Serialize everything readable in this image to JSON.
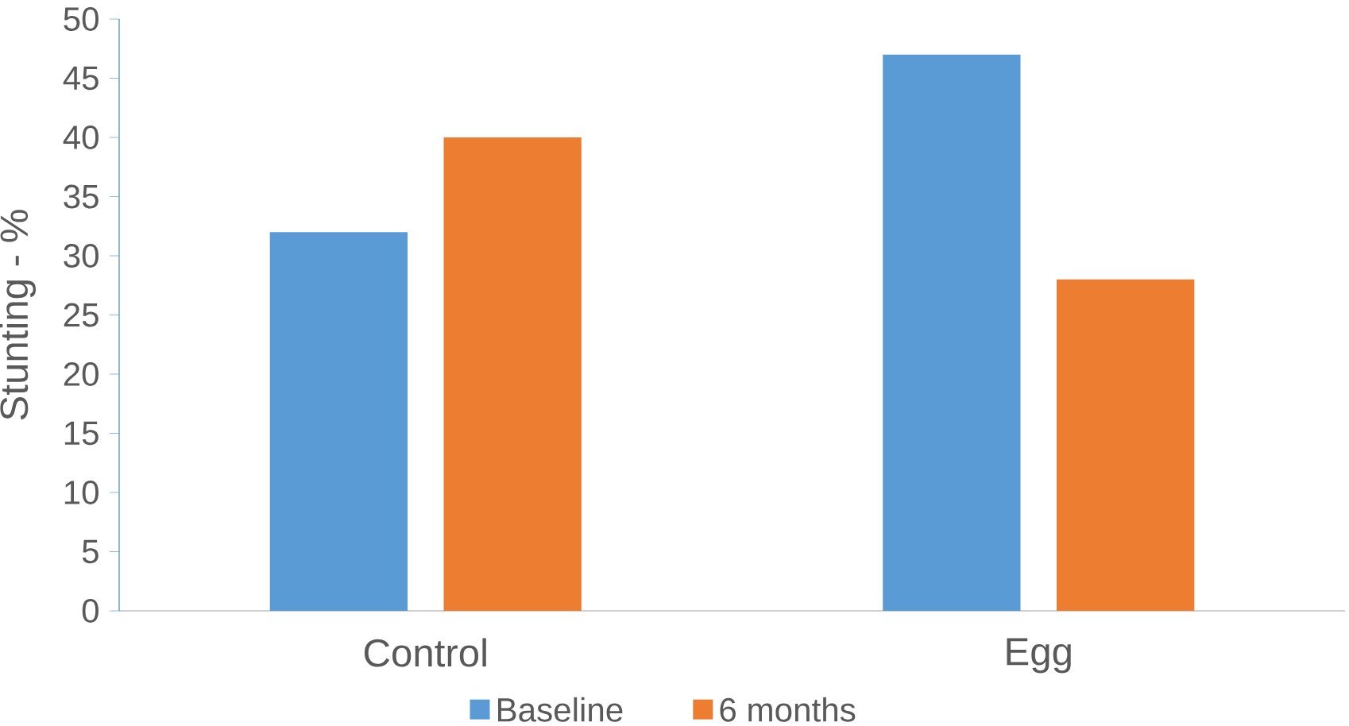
{
  "chart_data": {
    "type": "bar",
    "ylabel": "Stunting - %",
    "categories": [
      "Control",
      "Egg"
    ],
    "series": [
      {
        "name": "Baseline",
        "color": "#5b9bd5",
        "values": [
          32,
          47
        ]
      },
      {
        "name": "6 months",
        "color": "#ed7d31",
        "values": [
          40,
          28
        ]
      }
    ],
    "ylim": [
      0,
      50
    ],
    "yticks": [
      0,
      5,
      10,
      15,
      20,
      25,
      30,
      35,
      40,
      45,
      50
    ],
    "legend": "bottom"
  }
}
